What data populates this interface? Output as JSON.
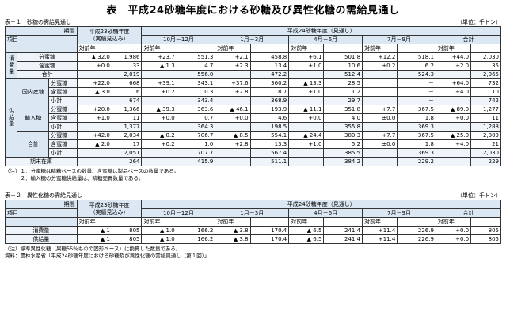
{
  "title": "表　平成24砂糖年度における砂糖及び異性化糖の需給見通し",
  "t1": {
    "caption": "表－１　砂糖の需給見通し",
    "unit": "（単位：千トン）",
    "period": "期間",
    "item": "項目",
    "col23": "平成23砂糖年度",
    "col23sub": "（実績見込み）",
    "col24": "平成24砂糖年度（見通し）",
    "q1": "10月－12月",
    "q2": "1月－3月",
    "q3": "4月－6月",
    "q4": "7月－9月",
    "total": "合計",
    "chg": "対前年",
    "cons": "消費量",
    "supply": "供給量",
    "domestic": "国内産糖",
    "import": "輸入糖",
    "sum": "合計",
    "bun": "分蜜糖",
    "gan": "含蜜糖",
    "subtotal": "小計",
    "gokei": "合計",
    "stock": "期末在庫",
    "r_c_bun": [
      "▲ 32.0",
      "1,986",
      "+23.7",
      "551.3",
      "+2.1",
      "458.8",
      "+6.1",
      "501.8",
      "+12.2",
      "518.1",
      "+44.0",
      "2,030"
    ],
    "r_c_gan": [
      "+0.0",
      "33",
      "▲ 1.3",
      "4.7",
      "+2.3",
      "13.4",
      "+1.0",
      "10.6",
      "+0.2",
      "6.2",
      "+2.0",
      "35"
    ],
    "r_c_tot": [
      "",
      "2,019",
      "",
      "556.0",
      "",
      "472.2",
      "",
      "512.4",
      "",
      "524.3",
      "",
      "2,065"
    ],
    "r_d_bun": [
      "+22.0",
      "668",
      "+39.1",
      "343.1",
      "+37.6",
      "360.2",
      "▲ 13.3",
      "28.5",
      "",
      "－",
      "+64.0",
      "732"
    ],
    "r_d_gan": [
      "▲ 3.0",
      "6",
      "+0.2",
      "0.3",
      "+2.8",
      "8.7",
      "+1.0",
      "1.2",
      "",
      "－",
      "+4.0",
      "10"
    ],
    "r_d_sub": [
      "",
      "674",
      "",
      "343.4",
      "",
      "368.9",
      "",
      "29.7",
      "",
      "－",
      "",
      "742"
    ],
    "r_i_bun": [
      "+20.0",
      "1,366",
      "▲ 39.3",
      "363.6",
      "▲ 46.1",
      "193.9",
      "▲ 11.1",
      "351.8",
      "+7.7",
      "367.5",
      "▲ 89.0",
      "1,277"
    ],
    "r_i_gan": [
      "+1.0",
      "11",
      "+0.0",
      "0.7",
      "+0.0",
      "4.6",
      "+0.0",
      "4.0",
      "±0.0",
      "1.8",
      "+0.0",
      "11"
    ],
    "r_i_sub": [
      "",
      "1,377",
      "",
      "364.3",
      "",
      "198.5",
      "",
      "355.8",
      "",
      "369.3",
      "",
      "1,288"
    ],
    "r_s_bun": [
      "+42.0",
      "2,034",
      "▲ 0.2",
      "706.7",
      "▲ 8.5",
      "554.1",
      "▲ 24.4",
      "380.3",
      "+7.7",
      "367.5",
      "▲ 25.0",
      "2,009"
    ],
    "r_s_gan": [
      "▲ 2.0",
      "17",
      "+0.2",
      "1.0",
      "+2.8",
      "13.3",
      "+1.0",
      "5.2",
      "±0.0",
      "1.8",
      "+4.0",
      "21"
    ],
    "r_s_sub": [
      "",
      "2,051",
      "",
      "707.7",
      "",
      "567.4",
      "",
      "385.5",
      "",
      "369.3",
      "",
      "2,030"
    ],
    "r_stock": [
      "",
      "264",
      "",
      "415.9",
      "",
      "511.1",
      "",
      "384.2",
      "",
      "229.2",
      "",
      "229"
    ],
    "notes": [
      "（注）１．分蜜糖は精糖ベースの数量、含蜜糖は製品ベースの数量である。",
      "　　　２．輸入糖の分蜜糖供給量は、精糖売買数量である。"
    ]
  },
  "t2": {
    "caption": "表－２　異性化糖の需給見通し",
    "unit": "（単位：千トン）",
    "cons": "消費量",
    "supply": "供給量",
    "r_cons": [
      "▲ 1",
      "805",
      "▲ 1.0",
      "166.2",
      "▲ 3.8",
      "170.4",
      "▲ 6.5",
      "241.4",
      "+11.4",
      "226.9",
      "+0.0",
      "805"
    ],
    "r_supply": [
      "▲ 1",
      "805",
      "▲ 1.0",
      "166.2",
      "▲ 3.8",
      "170.4",
      "▲ 6.5",
      "241.4",
      "+11.4",
      "226.9",
      "+0.0",
      "805"
    ],
    "notes": [
      "（注）標準異性化糖（果糖55％ものの固形ベース）に換算した数量である。",
      "資料：農林水産省「平成24砂糖年度における砂糖及び異性化糖の需給見通し（第１回）」"
    ]
  }
}
